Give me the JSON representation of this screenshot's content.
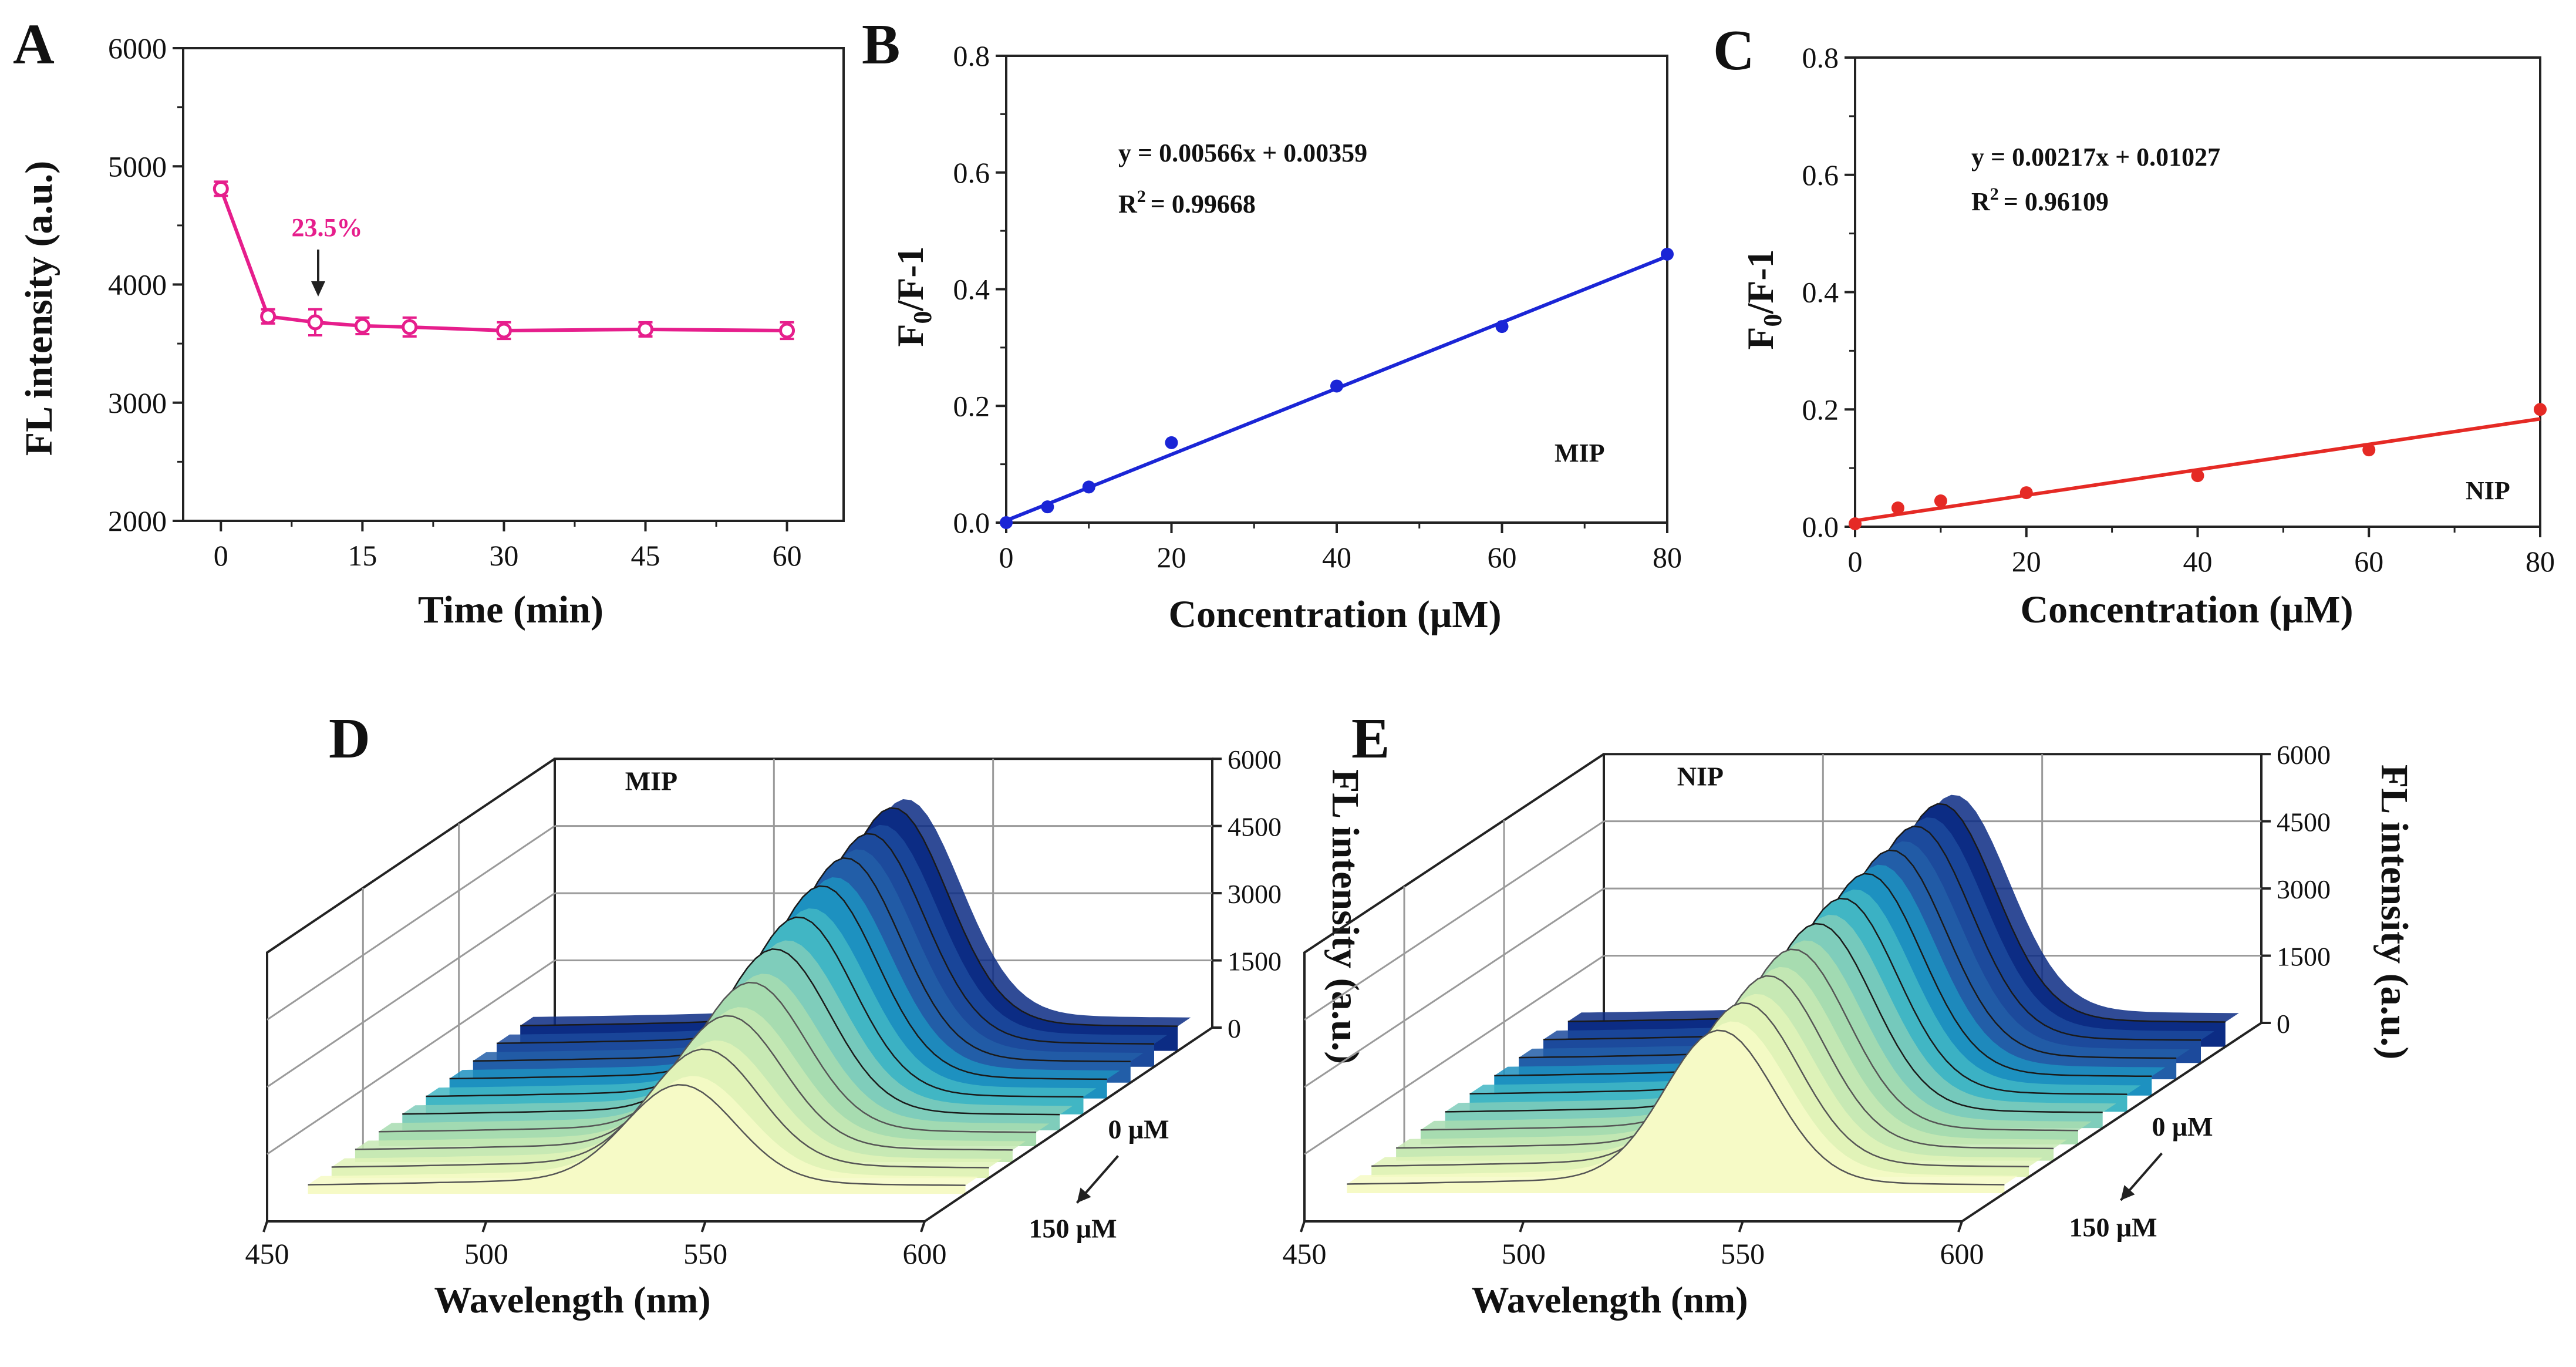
{
  "chart_data": [
    {
      "panel": "A",
      "type": "line",
      "xlabel": "Time (min)",
      "ylabel": "FL intensity (a.u.)",
      "xlim": [
        -4,
        66
      ],
      "ylim": [
        2000,
        6000
      ],
      "xticks": [
        "0",
        "15",
        "30",
        "45",
        "60"
      ],
      "yticks": [
        "2000",
        "3000",
        "4000",
        "5000",
        "6000"
      ],
      "color": "#e61e8c",
      "x": [
        0,
        5,
        10,
        15,
        20,
        30,
        45,
        60
      ],
      "y": [
        4810,
        3730,
        3680,
        3650,
        3640,
        3610,
        3620,
        3610
      ],
      "yerr": [
        60,
        60,
        110,
        70,
        80,
        70,
        60,
        70
      ],
      "annotation": {
        "text": "23.5%",
        "x": 10
      }
    },
    {
      "panel": "B",
      "type": "scatter",
      "xlabel": "Concentration (μM)",
      "ylabel": "F0/F-1",
      "xlim": [
        0,
        80
      ],
      "ylim": [
        0,
        0.8
      ],
      "xticks": [
        "0",
        "20",
        "40",
        "60",
        "80"
      ],
      "yticks": [
        "0.0",
        "0.2",
        "0.4",
        "0.6",
        "0.8"
      ],
      "color": "#1a25d6",
      "x": [
        0,
        5,
        10,
        20,
        40,
        60,
        80
      ],
      "y": [
        0.0,
        0.027,
        0.061,
        0.137,
        0.234,
        0.336,
        0.46
      ],
      "fit": {
        "slope": 0.00566,
        "intercept": 0.00359
      },
      "equation": "y = 0.00566x + 0.00359",
      "r2_value": "= 0.99668",
      "label": "MIP"
    },
    {
      "panel": "C",
      "type": "scatter",
      "xlabel": "Concentration (μM)",
      "ylabel": "F0/F-1",
      "xlim": [
        0,
        80
      ],
      "ylim": [
        0,
        0.8
      ],
      "xticks": [
        "0",
        "20",
        "40",
        "60",
        "80"
      ],
      "yticks": [
        "0.0",
        "0.2",
        "0.4",
        "0.6",
        "0.8"
      ],
      "color": "#e52a25",
      "x": [
        0,
        5,
        10,
        20,
        40,
        60,
        80
      ],
      "y": [
        0.005,
        0.032,
        0.044,
        0.058,
        0.087,
        0.131,
        0.2
      ],
      "fit": {
        "slope": 0.00217,
        "intercept": 0.01027
      },
      "equation": "y = 0.00217x + 0.01027",
      "r2_value": "= 0.96109",
      "label": "NIP"
    },
    {
      "panel": "D",
      "type": "area",
      "label": "MIP",
      "xlabel": "Wavelength (nm)",
      "zlabel": "FL intensity (a.u.)",
      "xticks": [
        "450",
        "500",
        "550",
        "600"
      ],
      "zticks": [
        "0",
        "1500",
        "3000",
        "4500",
        "6000"
      ],
      "ylabel_top": "0 μM",
      "ylabel_bottom": "150 μM",
      "peak_nm": 535,
      "peaks": [
        4780,
        4600,
        4450,
        4220,
        3920,
        3600,
        3250,
        2900,
        2550,
        2150
      ]
    },
    {
      "panel": "E",
      "type": "area",
      "label": "NIP",
      "xlabel": "Wavelength (nm)",
      "zlabel": "FL intensity (a.u.)",
      "xticks": [
        "450",
        "500",
        "550",
        "600"
      ],
      "zticks": [
        "0",
        "1500",
        "3000",
        "4500",
        "6000"
      ],
      "ylabel_top": "0 μM",
      "ylabel_bottom": "150 μM",
      "peak_nm": 535,
      "peaks": [
        4780,
        4680,
        4550,
        4430,
        4280,
        4120,
        3950,
        3760,
        3560,
        3350
      ]
    }
  ],
  "ribbon_colors": [
    "#0c2c84",
    "#1c4a9c",
    "#225ea8",
    "#1d91c0",
    "#41b6c4",
    "#7fcdbb",
    "#a7dcb0",
    "#c7e9b4",
    "#e1f3b8",
    "#f6fac6"
  ]
}
